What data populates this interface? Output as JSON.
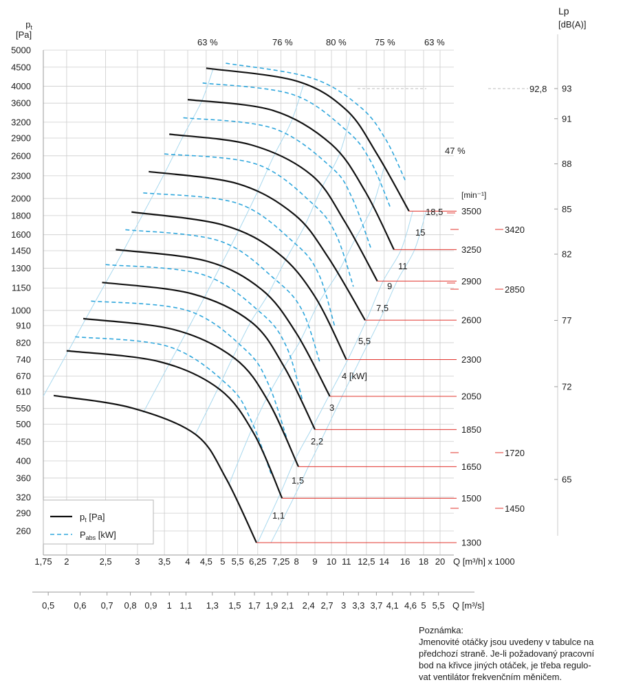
{
  "chart_data": {
    "type": "line",
    "y_axis": {
      "label": "p",
      "label_sub": "t",
      "unit": "[Pa]",
      "scale": "log",
      "ticks": [
        5000,
        4500,
        4000,
        3600,
        3200,
        2900,
        2600,
        2300,
        2000,
        1800,
        1600,
        1450,
        1300,
        1150,
        1000,
        910,
        820,
        740,
        670,
        610,
        550,
        500,
        450,
        400,
        360,
        320,
        290,
        260
      ]
    },
    "x_axis_flow_m3h": {
      "label": "Q [m³/h] x 1000",
      "scale": "log",
      "ticks": [
        "1,75",
        "2",
        "2,5",
        "3",
        "3,5",
        "4",
        "4,5",
        "5",
        "5,5",
        "6,25",
        "7,25",
        "8",
        "9",
        "10",
        "11",
        "12,5",
        "14",
        "16",
        "18",
        "20"
      ],
      "tick_values": [
        1.75,
        2,
        2.5,
        3,
        3.5,
        4,
        4.5,
        5,
        5.5,
        6.25,
        7.25,
        8,
        9,
        10,
        11,
        12.5,
        14,
        16,
        18,
        20
      ]
    },
    "x_axis_flow_m3s": {
      "label": "Q [m³/s]",
      "ticks": [
        "0,5",
        "0,6",
        "0,7",
        "0,8",
        "0,9",
        "1",
        "1,1",
        "1,3",
        "1,5",
        "1,7",
        "1,9",
        "2,1",
        "2,4",
        "2,7",
        "3",
        "3,3",
        "3,7",
        "4,1",
        "4,6",
        "5",
        "5,5"
      ],
      "tick_values": [
        0.5,
        0.6,
        0.7,
        0.8,
        0.9,
        1,
        1.1,
        1.3,
        1.5,
        1.7,
        1.9,
        2.1,
        2.4,
        2.7,
        3,
        3.3,
        3.7,
        4.1,
        4.6,
        5,
        5.5
      ]
    },
    "speed_axis": {
      "unit": "[min⁻¹]",
      "ticks": [
        "3500",
        "3250",
        "2900",
        "2600",
        "2300",
        "2050",
        "1850",
        "1650",
        "1500",
        "1300"
      ],
      "intermediate": [
        "3420",
        "2850",
        "1720",
        "1450"
      ]
    },
    "noise_axis": {
      "label": "Lp",
      "unit": "[dB(A)]",
      "ticks": [
        "93",
        "91",
        "88",
        "85",
        "82",
        "77",
        "72",
        "65"
      ]
    },
    "noise_marker": "92,8",
    "efficiency_labels": [
      "63 %",
      "76 %",
      "80 %",
      "75 %",
      "63 %",
      "47 %"
    ],
    "power_labels": [
      "18,5",
      "15",
      "11",
      "9",
      "7,5",
      "5,5",
      "4 [kW]",
      "3",
      "2,2",
      "1,5",
      "1,1"
    ],
    "pressure_curves": [
      {
        "rpm": 3500,
        "points": [
          [
            4.5,
            4470
          ],
          [
            8,
            4130
          ],
          [
            11,
            3450
          ],
          [
            13.4,
            2620
          ],
          [
            16.4,
            1850
          ]
        ]
      },
      {
        "rpm": 3250,
        "points": [
          [
            4,
            3680
          ],
          [
            6.9,
            3440
          ],
          [
            10,
            2790
          ],
          [
            12.4,
            2090
          ],
          [
            14.9,
            1460
          ]
        ]
      },
      {
        "rpm": 2900,
        "points": [
          [
            3.6,
            2970
          ],
          [
            6,
            2780
          ],
          [
            8.8,
            2310
          ],
          [
            10.9,
            1730
          ],
          [
            13.4,
            1200
          ]
        ]
      },
      {
        "rpm": 2600,
        "points": [
          [
            3.2,
            2360
          ],
          [
            5.5,
            2190
          ],
          [
            7.9,
            1810
          ],
          [
            9.8,
            1390
          ],
          [
            12.4,
            941
          ]
        ]
      },
      {
        "rpm": 2300,
        "points": [
          [
            2.9,
            1840
          ],
          [
            5,
            1700
          ],
          [
            7.1,
            1430
          ],
          [
            9,
            1090
          ],
          [
            11,
            740
          ]
        ]
      },
      {
        "rpm": 2050,
        "points": [
          [
            2.65,
            1460
          ],
          [
            4.5,
            1360
          ],
          [
            6.4,
            1140
          ],
          [
            8,
            868
          ],
          [
            9.9,
            592
          ]
        ]
      },
      {
        "rpm": 1850,
        "points": [
          [
            2.45,
            1190
          ],
          [
            4.1,
            1110
          ],
          [
            6,
            930
          ],
          [
            7.4,
            708
          ],
          [
            9,
            484
          ]
        ]
      },
      {
        "rpm": 1650,
        "points": [
          [
            2.2,
            950
          ],
          [
            3.7,
            888
          ],
          [
            5.4,
            745
          ],
          [
            6.7,
            572
          ],
          [
            8.1,
            386
          ]
        ]
      },
      {
        "rpm": 1500,
        "points": [
          [
            2,
            781
          ],
          [
            3.4,
            731
          ],
          [
            4.9,
            618
          ],
          [
            6.1,
            472
          ],
          [
            7.3,
            318
          ]
        ]
      },
      {
        "rpm": 1300,
        "points": [
          [
            1.7,
            595
          ],
          [
            2.9,
            552
          ],
          [
            4.2,
            470
          ],
          [
            5.1,
            360
          ],
          [
            6.2,
            242
          ]
        ]
      }
    ],
    "power_curves": [
      {
        "points": [
          [
            5.1,
            4610
          ],
          [
            8.8,
            4210
          ],
          [
            12,
            3520
          ],
          [
            14.1,
            2890
          ],
          [
            16,
            2240
          ]
        ]
      },
      {
        "points": [
          [
            4.4,
            4080
          ],
          [
            7.8,
            3800
          ],
          [
            11,
            3040
          ],
          [
            12.8,
            2530
          ],
          [
            14.6,
            1880
          ]
        ]
      },
      {
        "points": [
          [
            3.9,
            3290
          ],
          [
            6.9,
            3080
          ],
          [
            10,
            2420
          ],
          [
            11.4,
            2010
          ],
          [
            12.9,
            1460
          ]
        ]
      },
      {
        "points": [
          [
            3.5,
            2630
          ],
          [
            6.2,
            2470
          ],
          [
            8.9,
            1930
          ],
          [
            10.3,
            1600
          ],
          [
            11.5,
            1160
          ]
        ]
      },
      {
        "points": [
          [
            3.1,
            2070
          ],
          [
            5.5,
            1940
          ],
          [
            7.9,
            1520
          ],
          [
            9.2,
            1260
          ],
          [
            10.2,
            910
          ]
        ]
      },
      {
        "points": [
          [
            2.8,
            1650
          ],
          [
            4.9,
            1540
          ],
          [
            7,
            1210
          ],
          [
            8.3,
            1000
          ],
          [
            9.3,
            725
          ]
        ]
      },
      {
        "points": [
          [
            2.5,
            1330
          ],
          [
            4.4,
            1250
          ],
          [
            6.4,
            982
          ],
          [
            7.5,
            802
          ],
          [
            8.3,
            582
          ]
        ]
      },
      {
        "points": [
          [
            2.3,
            1060
          ],
          [
            4,
            999
          ],
          [
            5.8,
            783
          ],
          [
            6.7,
            636
          ],
          [
            7.5,
            463
          ]
        ]
      },
      {
        "points": [
          [
            2.1,
            850
          ],
          [
            3.6,
            800
          ],
          [
            5.2,
            630
          ],
          [
            6,
            510
          ],
          [
            6.8,
            370
          ]
        ]
      }
    ],
    "efficiency_lines": [
      {
        "label": "63 %",
        "rows": [
          1300,
          1500,
          1650,
          1850,
          2050,
          2300,
          2600,
          2900,
          3250,
          3500
        ],
        "x": [
          1.75,
          2.02,
          2.23,
          2.5,
          2.77,
          3.1,
          3.5,
          3.9,
          4.37,
          4.7
        ]
      },
      {
        "label": "76 %",
        "rows": [
          1300,
          1500,
          1650,
          1850,
          2050,
          2300,
          2600,
          2900,
          3250,
          3500
        ],
        "x": [
          3.1,
          3.58,
          3.94,
          4.42,
          4.9,
          5.5,
          6.2,
          6.92,
          7.75,
          8.36
        ]
      },
      {
        "label": "80 %",
        "rows": [
          1300,
          1500,
          1650,
          1850,
          2050,
          2300,
          2600,
          2900,
          3250,
          3500
        ],
        "x": [
          4.2,
          4.85,
          5.33,
          5.98,
          6.63,
          7.43,
          8.4,
          9.37,
          10.5,
          11.3
        ]
      },
      {
        "label": "75 %",
        "rows": [
          1300,
          1500,
          1650,
          1850,
          2050,
          2300,
          2600,
          2900,
          3250,
          3500
        ],
        "x": [
          5.2,
          6,
          6.6,
          7.4,
          8.2,
          9.2,
          10.4,
          11.6,
          13,
          14
        ]
      },
      {
        "label": "63 %",
        "rows": [
          1300,
          1500,
          1650,
          1850,
          2050,
          2300,
          2600,
          2900,
          3250,
          3500
        ],
        "x": [
          6.25,
          7.21,
          7.93,
          8.9,
          9.86,
          11.1,
          12.5,
          13.9,
          15.6,
          16.8
        ]
      },
      {
        "label": "47 %",
        "rows": [
          1300,
          1500,
          1650,
          1850,
          2050,
          2300,
          2600,
          2900,
          3250,
          3500
        ],
        "x": [
          6.8,
          7.85,
          8.63,
          9.68,
          10.7,
          12,
          13.6,
          15.2,
          17,
          18.3
        ]
      }
    ],
    "legend": [
      {
        "label": "p",
        "sub": "t",
        "unit": "[Pa]",
        "style": "solid",
        "color": "#111111"
      },
      {
        "label": "P",
        "sub": "abs",
        "unit": "[kW]",
        "style": "dashed",
        "color": "#2ea6dc"
      }
    ],
    "grid": true,
    "colors": {
      "pressure": "#111111",
      "power": "#2ea6dc",
      "efficiency": "#a8d8ee",
      "speed_marker": "#e0302a",
      "grid": "#cccccc"
    }
  },
  "note": {
    "title": "Poznámka:",
    "lines": [
      "Jmenovité otáčky jsou uvedeny v tabulce na",
      "předchozí straně. Je-li požadovaný pracovní",
      "bod na křivce jiných otáček, je třeba regulo-",
      "vat ventilátor frekvenčním měničem."
    ]
  }
}
